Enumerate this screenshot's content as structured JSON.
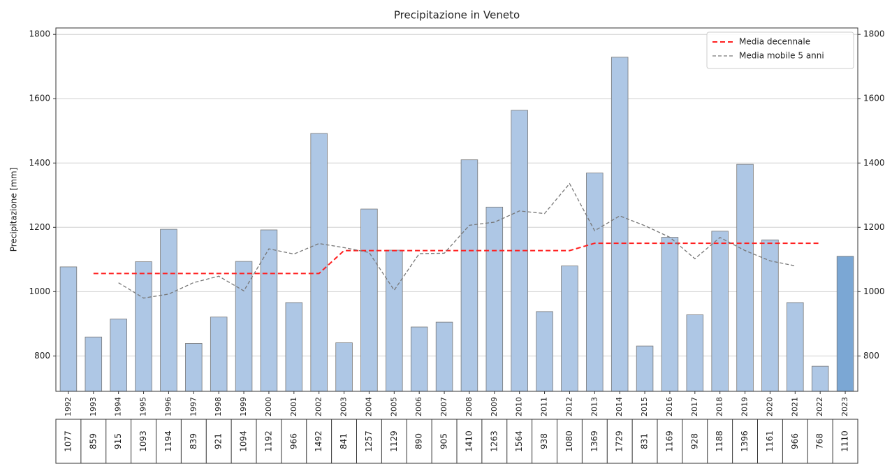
{
  "chart_data": {
    "type": "bar",
    "title": "Precipitazione in Veneto",
    "ylabel": "Precipitazione [mm]",
    "categories": [
      "1992",
      "1993",
      "1994",
      "1995",
      "1996",
      "1997",
      "1998",
      "1999",
      "2000",
      "2001",
      "2002",
      "2003",
      "2004",
      "2005",
      "2006",
      "2007",
      "2008",
      "2009",
      "2010",
      "2011",
      "2012",
      "2013",
      "2014",
      "2015",
      "2016",
      "2017",
      "2018",
      "2019",
      "2020",
      "2021",
      "2022",
      "2023"
    ],
    "values": [
      1077,
      859,
      915,
      1093,
      1194,
      839,
      921,
      1094,
      1192,
      966,
      1492,
      841,
      1257,
      1129,
      890,
      905,
      1410,
      1263,
      1564,
      938,
      1080,
      1369,
      1729,
      831,
      1169,
      928,
      1188,
      1396,
      1161,
      966,
      768,
      1110
    ],
    "colors": [
      "#aec7e5",
      "#aec7e5",
      "#aec7e5",
      "#aec7e5",
      "#aec7e5",
      "#aec7e5",
      "#aec7e5",
      "#aec7e5",
      "#aec7e5",
      "#aec7e5",
      "#aec7e5",
      "#aec7e5",
      "#aec7e5",
      "#aec7e5",
      "#aec7e5",
      "#aec7e5",
      "#aec7e5",
      "#aec7e5",
      "#aec7e5",
      "#aec7e5",
      "#aec7e5",
      "#aec7e5",
      "#aec7e5",
      "#aec7e5",
      "#aec7e5",
      "#aec7e5",
      "#aec7e5",
      "#aec7e5",
      "#aec7e5",
      "#aec7e5",
      "#aec7e5",
      "#7ba7d4"
    ],
    "series": [
      {
        "name": "Media decennale",
        "color": "#ff2020",
        "values": [
          null,
          1056.5,
          1056.5,
          1056.5,
          1056.5,
          1056.5,
          1056.5,
          1056.5,
          1056.5,
          1056.5,
          1056.5,
          1127.7,
          1127.7,
          1127.7,
          1127.7,
          1127.7,
          1127.7,
          1127.7,
          1127.7,
          1127.7,
          1127.7,
          1150.5,
          1150.5,
          1150.5,
          1150.5,
          1150.5,
          1150.5,
          1150.5,
          1150.5,
          1150.5,
          1150.5,
          null
        ]
      },
      {
        "name": "Media mobile 5 anni",
        "color": "#777777",
        "values": [
          null,
          null,
          1027.6,
          980,
          992.4,
          1028.2,
          1048,
          1002.4,
          1133,
          1117,
          1149.6,
          1137,
          1121.8,
          1004.4,
          1118.2,
          1119.4,
          1206.4,
          1216,
          1251,
          1242.8,
          1336,
          1189.4,
          1235.6,
          1205.2,
          1169,
          1102.4,
          1168.4,
          1127.8,
          1095.8,
          1080.2,
          null,
          null
        ]
      }
    ],
    "ylim": [
      690,
      1820
    ],
    "yticks": [
      800,
      1000,
      1200,
      1400,
      1600,
      1800
    ],
    "grid": true,
    "legend": "upper right"
  }
}
